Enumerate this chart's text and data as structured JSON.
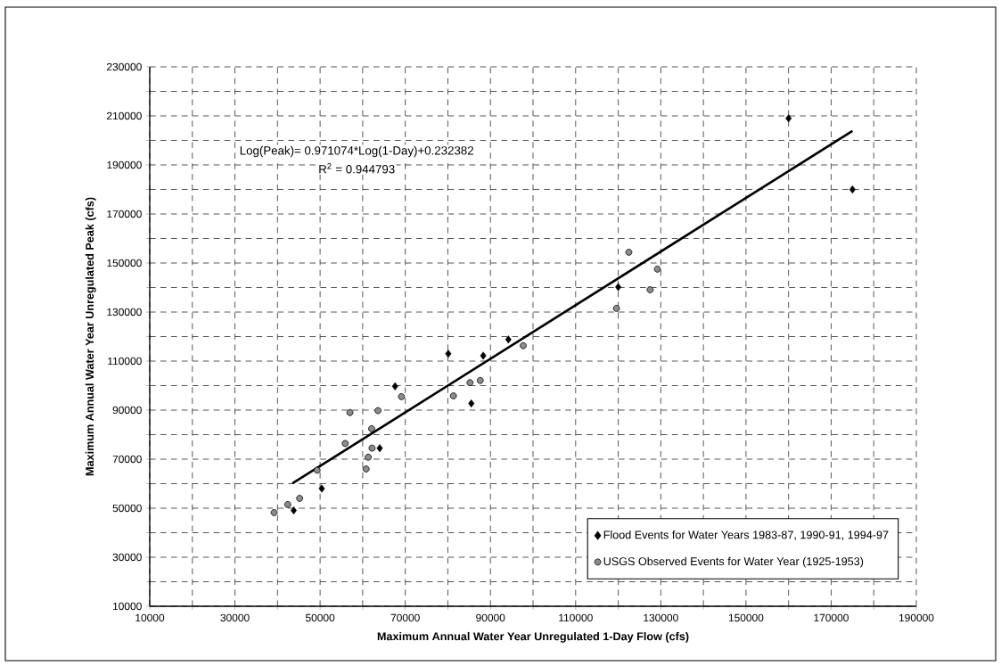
{
  "chart_data": {
    "type": "scatter",
    "xlabel": "Maximum Annual Water Year Unregulated 1-Day Flow (cfs)",
    "ylabel": "Maximum Annual Water Year Unregulated Peak (cfs)",
    "xlim": [
      10000,
      190000
    ],
    "ylim": [
      10000,
      230000
    ],
    "xticks": [
      10000,
      {
        "value": 20000,
        "label": null
      },
      30000,
      {
        "value": 40000,
        "label": null
      },
      50000,
      {
        "value": 60000,
        "label": null
      },
      70000,
      {
        "value": 80000,
        "label": null
      },
      90000,
      {
        "value": 100000,
        "label": null
      },
      110000,
      {
        "value": 120000,
        "label": null
      },
      130000,
      {
        "value": 140000,
        "label": null
      },
      150000,
      {
        "value": 160000,
        "label": null
      },
      170000,
      {
        "value": 180000,
        "label": null
      },
      190000
    ],
    "yticks": [
      10000,
      {
        "value": 20000,
        "label": null
      },
      30000,
      {
        "value": 40000,
        "label": null
      },
      50000,
      {
        "value": 60000,
        "label": null
      },
      70000,
      {
        "value": 80000,
        "label": null
      },
      90000,
      {
        "value": 100000,
        "label": null
      },
      110000,
      {
        "value": 120000,
        "label": null
      },
      130000,
      {
        "value": 140000,
        "label": null
      },
      150000,
      {
        "value": 160000,
        "label": null
      },
      170000,
      {
        "value": 180000,
        "label": null
      },
      190000,
      {
        "value": 200000,
        "label": null
      },
      210000,
      {
        "value": 220000,
        "label": null
      },
      230000
    ],
    "grid": true,
    "legend": "bottom right",
    "annotations": [
      "Log(Peak)= 0.971074*Log(1-Day)+0.232382",
      "R$^{2}$ = 0.944793"
    ],
    "series": [
      {
        "name": "Flood Events for Water Years 1983-87, 1990-91, 1994-97",
        "color": "#000000",
        "marker": "diamond",
        "x": [
          43800,
          50400,
          64000,
          67600,
          80100,
          85500,
          88300,
          94200,
          120000,
          160000,
          175000
        ],
        "values": [
          49100,
          58000,
          74500,
          99700,
          113000,
          92700,
          112200,
          118800,
          140200,
          209000,
          180000
        ]
      },
      {
        "name": "USGS Observed Events for Water Year (1925-1953)",
        "color": "#8c8c8c",
        "marker": "circle",
        "x": [
          39200,
          42400,
          45200,
          49300,
          55900,
          57000,
          60800,
          61300,
          62100,
          62200,
          63600,
          69100,
          81300,
          85200,
          87600,
          97700,
          119600,
          122500,
          127500,
          129200
        ],
        "values": [
          48200,
          51500,
          54000,
          65500,
          76400,
          89000,
          66000,
          70800,
          82400,
          74500,
          89800,
          95500,
          95800,
          101200,
          102100,
          116300,
          131500,
          154400,
          139100,
          147500
        ]
      },
      {
        "type": "line",
        "color": "#000000",
        "marker": "none",
        "x": [
          43500,
          175000
        ],
        "values": [
          60100,
          203900
        ]
      }
    ]
  }
}
